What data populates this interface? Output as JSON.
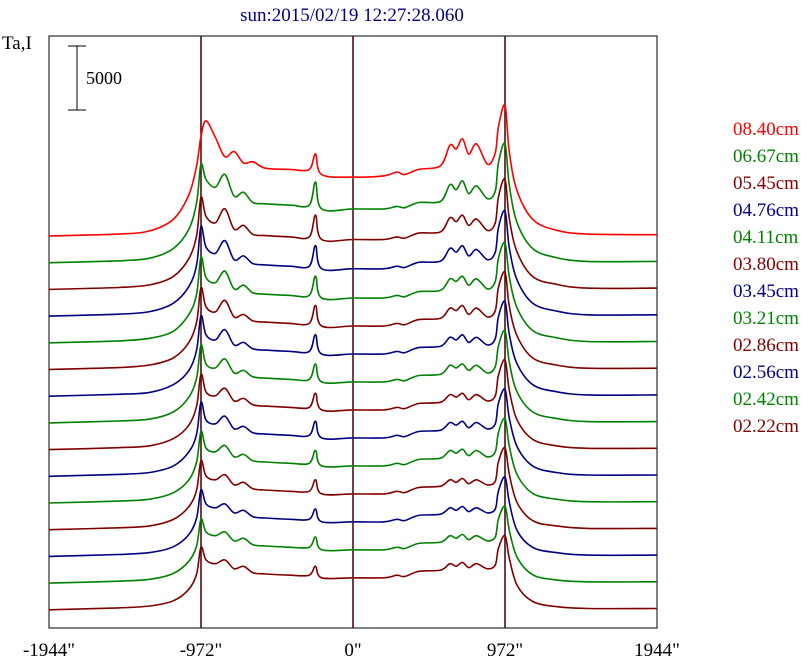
{
  "chart_data": {
    "type": "line",
    "title": "sun:2015/02/19 12:27:28.060",
    "ylabel": "Ta,I",
    "scale_bar_label": "5000",
    "scale_bar_value": 5000,
    "xlim": [
      -1944,
      1944
    ],
    "x_ticks": [
      {
        "value": -1944,
        "label": "-1944\""
      },
      {
        "value": -972,
        "label": "-972\""
      },
      {
        "value": 0,
        "label": "0\""
      },
      {
        "value": 972,
        "label": "972\""
      },
      {
        "value": 1944,
        "label": "1944\""
      }
    ],
    "vertical_lines_x": [
      -972,
      0,
      972
    ],
    "x_profile": [
      -1944,
      -1500,
      -1300,
      -1150,
      -1050,
      -1000,
      -972,
      -940,
      -880,
      -820,
      -760,
      -700,
      -640,
      -560,
      -400,
      -280,
      -240,
      -200,
      0,
      200,
      280,
      330,
      420,
      560,
      620,
      660,
      700,
      740,
      790,
      860,
      910,
      930,
      972,
      1000,
      1050,
      1150,
      1300,
      1500,
      1944
    ],
    "series": [
      {
        "name": "08.40cm",
        "color": "#ff0000",
        "baseline_rel": [
          0,
          150,
          400,
          1300,
          3200,
          5500,
          7800,
          9000,
          7700,
          6200,
          6600,
          5700,
          5800,
          5300,
          5200,
          5200,
          6400,
          4800,
          4600,
          4700,
          5000,
          4800,
          5200,
          5500,
          7100,
          6800,
          7600,
          6400,
          7200,
          5600,
          6500,
          8500,
          10200,
          6500,
          3500,
          1300,
          450,
          150,
          100
        ]
      },
      {
        "name": "06.67cm",
        "color": "#008000",
        "baseline_rel": [
          0,
          150,
          350,
          1100,
          2600,
          4700,
          7700,
          6500,
          5900,
          6900,
          5200,
          5500,
          4700,
          4600,
          4500,
          4500,
          6300,
          4200,
          4200,
          4200,
          4400,
          4300,
          4700,
          4800,
          6100,
          5700,
          6400,
          5400,
          6000,
          5000,
          5600,
          7800,
          9300,
          6000,
          3100,
          1100,
          400,
          100,
          100
        ]
      },
      {
        "name": "05.45cm",
        "color": "#800000",
        "baseline_rel": [
          0,
          150,
          350,
          1000,
          2400,
          4200,
          7200,
          5700,
          5200,
          6300,
          4700,
          5000,
          4300,
          4200,
          4100,
          4100,
          5800,
          3900,
          3900,
          3900,
          4100,
          4000,
          4400,
          4500,
          5600,
          5300,
          5800,
          5000,
          5500,
          4600,
          5200,
          7200,
          8600,
          5500,
          2900,
          1000,
          400,
          100,
          100
        ]
      },
      {
        "name": "04.76cm",
        "color": "#000080",
        "baseline_rel": [
          0,
          150,
          350,
          1000,
          2300,
          4000,
          7000,
          5400,
          4900,
          5900,
          4400,
          4700,
          4100,
          4000,
          3900,
          3900,
          5500,
          3700,
          3700,
          3700,
          3900,
          3800,
          4200,
          4300,
          5300,
          5000,
          5500,
          4700,
          5200,
          4400,
          5000,
          6900,
          8200,
          5300,
          2800,
          1000,
          400,
          100,
          100
        ]
      },
      {
        "name": "04.11cm",
        "color": "#008000",
        "baseline_rel": [
          0,
          150,
          350,
          900,
          2200,
          3800,
          6700,
          5100,
          4700,
          5600,
          4200,
          4500,
          3900,
          3800,
          3700,
          3700,
          5200,
          3500,
          3500,
          3500,
          3700,
          3600,
          4000,
          4100,
          5000,
          4800,
          5200,
          4500,
          5000,
          4200,
          4800,
          6600,
          7800,
          5100,
          2700,
          950,
          400,
          100,
          100
        ]
      },
      {
        "name": "03.80cm",
        "color": "#800000",
        "baseline_rel": [
          0,
          150,
          350,
          900,
          2100,
          3700,
          6400,
          4900,
          4500,
          5400,
          4100,
          4300,
          3800,
          3700,
          3600,
          3600,
          5000,
          3400,
          3400,
          3400,
          3600,
          3500,
          3900,
          4000,
          4800,
          4600,
          5000,
          4300,
          4800,
          4100,
          4600,
          6400,
          7600,
          4900,
          2600,
          900,
          350,
          100,
          100
        ]
      },
      {
        "name": "03.45cm",
        "color": "#000080",
        "baseline_rel": [
          0,
          150,
          300,
          900,
          2000,
          3600,
          6300,
          4800,
          4400,
          5200,
          4000,
          4200,
          3700,
          3600,
          3500,
          3500,
          4800,
          3300,
          3300,
          3300,
          3500,
          3400,
          3800,
          3900,
          4600,
          4400,
          4800,
          4200,
          4600,
          4000,
          4500,
          6200,
          7400,
          4800,
          2500,
          900,
          350,
          100,
          100
        ]
      },
      {
        "name": "03.21cm",
        "color": "#008000",
        "baseline_rel": [
          0,
          150,
          300,
          850,
          2000,
          3500,
          6100,
          4600,
          4300,
          5000,
          3900,
          4100,
          3600,
          3500,
          3400,
          3400,
          4600,
          3200,
          3200,
          3200,
          3400,
          3300,
          3700,
          3800,
          4500,
          4300,
          4600,
          4100,
          4500,
          3900,
          4400,
          6000,
          7200,
          4700,
          2400,
          850,
          350,
          100,
          100
        ]
      },
      {
        "name": "02.86cm",
        "color": "#800000",
        "baseline_rel": [
          0,
          150,
          300,
          850,
          1900,
          3400,
          5900,
          4500,
          4200,
          4800,
          3800,
          4000,
          3500,
          3400,
          3300,
          3300,
          4400,
          3100,
          3100,
          3100,
          3300,
          3200,
          3600,
          3700,
          4300,
          4100,
          4400,
          3900,
          4300,
          3800,
          4200,
          5800,
          7000,
          4600,
          2300,
          800,
          300,
          100,
          100
        ]
      },
      {
        "name": "02.56cm",
        "color": "#000080",
        "baseline_rel": [
          0,
          150,
          300,
          800,
          1900,
          3300,
          5800,
          4400,
          4100,
          4700,
          3700,
          3900,
          3400,
          3300,
          3200,
          3200,
          4300,
          3000,
          3000,
          3000,
          3200,
          3100,
          3500,
          3600,
          4200,
          4000,
          4300,
          3800,
          4200,
          3700,
          4100,
          5700,
          6800,
          4500,
          2300,
          800,
          300,
          100,
          100
        ]
      },
      {
        "name": "02.42cm",
        "color": "#008000",
        "baseline_rel": [
          0,
          150,
          300,
          800,
          1800,
          3200,
          5600,
          4300,
          4000,
          4500,
          3600,
          3800,
          3300,
          3200,
          3100,
          3100,
          4100,
          2900,
          2900,
          2900,
          3100,
          3000,
          3400,
          3500,
          4100,
          3900,
          4200,
          3700,
          4100,
          3600,
          4000,
          5500,
          6600,
          4400,
          2200,
          750,
          300,
          100,
          100
        ]
      },
      {
        "name": "02.22cm",
        "color": "#800000",
        "baseline_rel": [
          0,
          150,
          300,
          800,
          1800,
          3100,
          5400,
          4200,
          3900,
          4300,
          3500,
          3700,
          3200,
          3100,
          3000,
          3000,
          3900,
          2800,
          2800,
          2800,
          3000,
          2900,
          3300,
          3400,
          3900,
          3700,
          4000,
          3600,
          3900,
          3500,
          3800,
          5300,
          6400,
          4300,
          2100,
          700,
          300,
          100,
          100
        ]
      },
      {
        "color": "#000080",
        "baseline_rel": [
          0,
          150,
          300,
          750,
          1700,
          3000,
          5200,
          4100,
          3800,
          4100,
          3400,
          3600,
          3100,
          3000,
          2900,
          2900,
          3700,
          2700,
          2700,
          2700,
          2900,
          2800,
          3200,
          3300,
          3800,
          3600,
          3900,
          3500,
          3800,
          3400,
          3700,
          5100,
          6200,
          4200,
          2000,
          700,
          300,
          100,
          100
        ]
      },
      {
        "color": "#008000",
        "baseline_rel": [
          0,
          150,
          300,
          750,
          1700,
          2900,
          5000,
          4000,
          3700,
          4000,
          3300,
          3500,
          3000,
          2900,
          2800,
          2800,
          3600,
          2600,
          2600,
          2600,
          2800,
          2700,
          3100,
          3200,
          3700,
          3500,
          3800,
          3400,
          3700,
          3300,
          3600,
          5000,
          6000,
          4100,
          2000,
          650,
          250,
          100,
          100
        ]
      },
      {
        "color": "#800000",
        "baseline_rel": [
          0,
          150,
          300,
          700,
          1600,
          2800,
          4900,
          3900,
          3600,
          3900,
          3200,
          3400,
          2900,
          2800,
          2700,
          2700,
          3400,
          2500,
          2500,
          2500,
          2700,
          2600,
          3000,
          3100,
          3600,
          3400,
          3700,
          3300,
          3600,
          3200,
          3500,
          4800,
          5800,
          4000,
          1900,
          650,
          250,
          100,
          100
        ]
      }
    ]
  }
}
